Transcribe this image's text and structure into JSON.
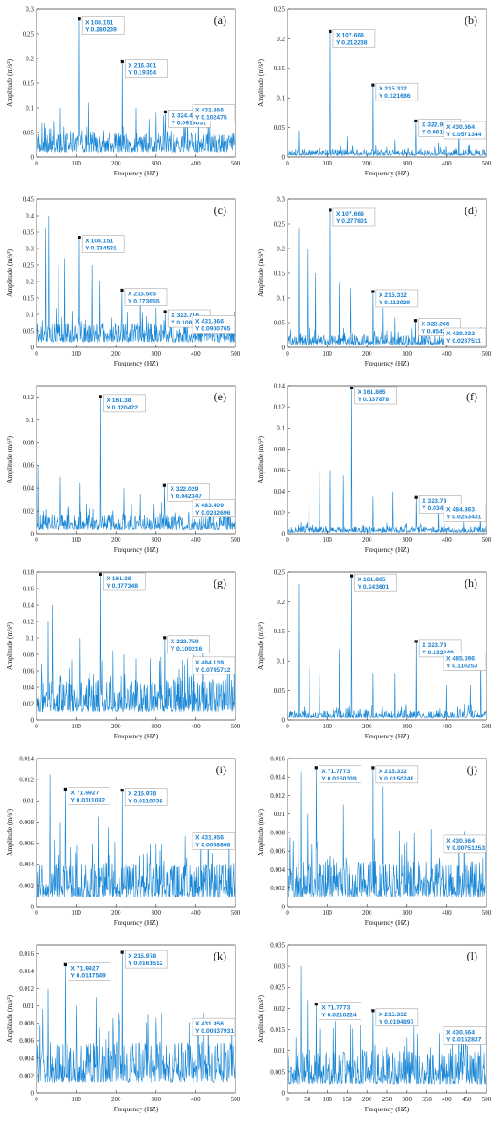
{
  "colors": {
    "line": "#1a87d6",
    "tip_text": "#1a7fd0",
    "tip_border": "#9a9a9a",
    "axis": "#333333"
  },
  "chart_data": [
    {
      "type": "line",
      "label": "(a)",
      "xlabel": "Frequency (HZ)",
      "ylabel": "Amplitude (m/s²)",
      "xlim": [
        0,
        500
      ],
      "ylim": [
        0,
        0.3
      ],
      "xticks": [
        "0",
        "100",
        "200",
        "300",
        "400",
        "500"
      ],
      "yticks": [
        "0",
        "0.05",
        "0.1",
        "0.15",
        "0.2",
        "0.25",
        "0.3"
      ],
      "noise_level": 0.03,
      "seed": 3,
      "peaks": [
        {
          "x": 108.151,
          "y": 0.280239,
          "tip_x": "X 108.151",
          "tip_y": "Y 0.280239"
        },
        {
          "x": 216.301,
          "y": 0.19354,
          "tip_x": "X 216.301",
          "tip_y": "Y 0.19354"
        },
        {
          "x": 324.452,
          "y": 0.0919031,
          "tip_x": "X 324.452",
          "tip_y": "Y 0.0919031"
        },
        {
          "x": 431.866,
          "y": 0.102475,
          "tip_x": "X 431.866",
          "tip_y": "Y 0.102475"
        }
      ],
      "extra_spikes": [
        [
          60,
          0.1
        ],
        [
          130,
          0.11
        ],
        [
          250,
          0.1
        ],
        [
          300,
          0.09
        ],
        [
          380,
          0.08
        ]
      ]
    },
    {
      "type": "line",
      "label": "(b)",
      "xlabel": "Frequency (HZ)",
      "ylabel": "Amplitude (m/s²)",
      "xlim": [
        0,
        500
      ],
      "ylim": [
        0,
        0.25
      ],
      "xticks": [
        "0",
        "100",
        "200",
        "300",
        "400",
        "500"
      ],
      "yticks": [
        "0",
        "0.05",
        "0.1",
        "0.15",
        "0.2",
        "0.25"
      ],
      "noise_level": 0.008,
      "seed": 7,
      "peaks": [
        {
          "x": 107.666,
          "y": 0.212238,
          "tip_x": "X 107.666",
          "tip_y": "Y 0.212238"
        },
        {
          "x": 215.332,
          "y": 0.121686,
          "tip_x": "X 215.332",
          "tip_y": "Y 0.121686"
        },
        {
          "x": 322.998,
          "y": 0.0610103,
          "tip_x": "X 322.998",
          "tip_y": "Y 0.0610103"
        },
        {
          "x": 430.664,
          "y": 0.0571344,
          "tip_x": "X 430.664",
          "tip_y": "Y 0.0571344"
        }
      ],
      "extra_spikes": [
        [
          30,
          0.045
        ],
        [
          150,
          0.035
        ],
        [
          270,
          0.03
        ],
        [
          380,
          0.025
        ]
      ]
    },
    {
      "type": "line",
      "label": "(c)",
      "xlabel": "Frequency (HZ)",
      "ylabel": "Amplitude (m/s²)",
      "xlim": [
        0,
        500
      ],
      "ylim": [
        0,
        0.45
      ],
      "xticks": [
        "0",
        "100",
        "200",
        "300",
        "400",
        "500"
      ],
      "yticks": [
        "0",
        "0.05",
        "0.1",
        "0.15",
        "0.2",
        "0.25",
        "0.3",
        "0.35",
        "0.4",
        "0.45"
      ],
      "noise_level": 0.045,
      "seed": 11,
      "peaks": [
        {
          "x": 108.151,
          "y": 0.334531,
          "tip_x": "X 108.151",
          "tip_y": "Y 0.334531"
        },
        {
          "x": 215.565,
          "y": 0.173655,
          "tip_x": "X 215.565",
          "tip_y": "Y 0.173655"
        },
        {
          "x": 323.716,
          "y": 0.108211,
          "tip_x": "X 323.716",
          "tip_y": "Y 0.108211"
        },
        {
          "x": 431.866,
          "y": 0.0900765,
          "tip_x": "X 431.866",
          "tip_y": "Y 0.0900765"
        }
      ],
      "extra_spikes": [
        [
          22,
          0.36
        ],
        [
          32,
          0.4
        ],
        [
          55,
          0.25
        ],
        [
          70,
          0.27
        ],
        [
          140,
          0.25
        ],
        [
          160,
          0.2
        ],
        [
          260,
          0.16
        ],
        [
          300,
          0.12
        ]
      ]
    },
    {
      "type": "line",
      "label": "(d)",
      "xlabel": "Frequency (HZ)",
      "ylabel": "Amplitude (m/s²)",
      "xlim": [
        0,
        500
      ],
      "ylim": [
        0,
        0.3
      ],
      "xticks": [
        "0",
        "100",
        "200",
        "300",
        "400",
        "500"
      ],
      "yticks": [
        "0",
        "0.05",
        "0.1",
        "0.15",
        "0.2",
        "0.25",
        "0.3"
      ],
      "noise_level": 0.015,
      "seed": 17,
      "peaks": [
        {
          "x": 107.666,
          "y": 0.277801,
          "tip_x": "X 107.666",
          "tip_y": "Y 0.277801"
        },
        {
          "x": 215.332,
          "y": 0.113029,
          "tip_x": "X 215.332",
          "tip_y": "Y 0.113029"
        },
        {
          "x": 322.266,
          "y": 0.054243,
          "tip_x": "X 322.266",
          "tip_y": "Y 0.054243"
        },
        {
          "x": 429.932,
          "y": 0.0237511,
          "tip_x": "X 429.932",
          "tip_y": "Y 0.0237511"
        }
      ],
      "extra_spikes": [
        [
          30,
          0.24
        ],
        [
          50,
          0.2
        ],
        [
          70,
          0.15
        ],
        [
          130,
          0.13
        ],
        [
          160,
          0.12
        ],
        [
          240,
          0.08
        ],
        [
          270,
          0.06
        ]
      ]
    },
    {
      "type": "line",
      "label": "(e)",
      "xlabel": "Frequency (HZ)",
      "ylabel": "Amplitude (m/s²)",
      "xlim": [
        0,
        500
      ],
      "ylim": [
        0,
        0.13
      ],
      "xticks": [
        "0",
        "100",
        "200",
        "300",
        "400",
        "500"
      ],
      "yticks": [
        "0",
        "0.02",
        "0.04",
        "0.06",
        "0.08",
        "0.1",
        "0.12"
      ],
      "noise_level": 0.01,
      "seed": 23,
      "peaks": [
        {
          "x": 161.38,
          "y": 0.120472,
          "tip_x": "X 161.38",
          "tip_y": "Y 0.120472"
        },
        {
          "x": 322.029,
          "y": 0.042347,
          "tip_x": "X 322.029",
          "tip_y": "Y 0.042347"
        },
        {
          "x": 483.409,
          "y": 0.0282696,
          "tip_x": "X 483.409",
          "tip_y": "Y 0.0282696"
        }
      ],
      "extra_spikes": [
        [
          5,
          0.06
        ],
        [
          60,
          0.05
        ],
        [
          110,
          0.045
        ],
        [
          220,
          0.04
        ],
        [
          260,
          0.035
        ]
      ]
    },
    {
      "type": "line",
      "label": "(f)",
      "xlabel": "Frequency (HZ)",
      "ylabel": "Amplitude (m/s²)",
      "xlim": [
        0,
        500
      ],
      "ylim": [
        0,
        0.14
      ],
      "xticks": [
        "0",
        "100",
        "200",
        "300",
        "400",
        "500"
      ],
      "yticks": [
        "0",
        "0.02",
        "0.04",
        "0.06",
        "0.08",
        "0.1",
        "0.12",
        "0.14"
      ],
      "noise_level": 0.004,
      "seed": 29,
      "peaks": [
        {
          "x": 161.865,
          "y": 0.137878,
          "tip_x": "X 161.865",
          "tip_y": "Y 0.137878"
        },
        {
          "x": 323.73,
          "y": 0.0343546,
          "tip_x": "X 323.73",
          "tip_y": "Y 0.0343546"
        },
        {
          "x": 484.863,
          "y": 0.0263431,
          "tip_x": "X 484.863",
          "tip_y": "Y 0.0263431"
        }
      ],
      "extra_spikes": [
        [
          54,
          0.058
        ],
        [
          80,
          0.06
        ],
        [
          108,
          0.06
        ],
        [
          140,
          0.055
        ],
        [
          215,
          0.035
        ],
        [
          265,
          0.04
        ],
        [
          380,
          0.025
        ]
      ]
    },
    {
      "type": "line",
      "label": "(g)",
      "xlabel": "Frequency (HZ)",
      "ylabel": "Amplitude (m/s²)",
      "xlim": [
        0,
        500
      ],
      "ylim": [
        0,
        0.18
      ],
      "xticks": [
        "0",
        "100",
        "200",
        "300",
        "400",
        "500"
      ],
      "yticks": [
        "0",
        "0.02",
        "0.04",
        "0.06",
        "0.08",
        "0.1",
        "0.12",
        "0.14",
        "0.16",
        "0.18"
      ],
      "noise_level": 0.03,
      "seed": 31,
      "peaks": [
        {
          "x": 161.38,
          "y": 0.177348,
          "tip_x": "X 161.38",
          "tip_y": "Y 0.177348"
        },
        {
          "x": 322.759,
          "y": 0.100216,
          "tip_x": "X 322.759",
          "tip_y": "Y 0.100216"
        },
        {
          "x": 484.139,
          "y": 0.0745712,
          "tip_x": "X 484.139",
          "tip_y": "Y 0.0745712"
        }
      ],
      "extra_spikes": [
        [
          30,
          0.12
        ],
        [
          40,
          0.14
        ],
        [
          110,
          0.1
        ],
        [
          220,
          0.08
        ],
        [
          380,
          0.075
        ]
      ]
    },
    {
      "type": "line",
      "label": "(h)",
      "xlabel": "Frequency (HZ)",
      "ylabel": "Amplitude (m/s²)",
      "xlim": [
        0,
        500
      ],
      "ylim": [
        0,
        0.25
      ],
      "xticks": [
        "0",
        "100",
        "200",
        "300",
        "400",
        "500"
      ],
      "yticks": [
        "0",
        "0.05",
        "0.1",
        "0.15",
        "0.2",
        "0.25"
      ],
      "noise_level": 0.01,
      "seed": 37,
      "peaks": [
        {
          "x": 161.865,
          "y": 0.243601,
          "tip_x": "X 161.865",
          "tip_y": "Y 0.243601"
        },
        {
          "x": 323.73,
          "y": 0.132849,
          "tip_x": "X 323.73",
          "tip_y": "Y 0.132849"
        },
        {
          "x": 485.596,
          "y": 0.110253,
          "tip_x": "X 485.596",
          "tip_y": "Y 0.110253"
        }
      ],
      "extra_spikes": [
        [
          30,
          0.23
        ],
        [
          55,
          0.09
        ],
        [
          80,
          0.08
        ],
        [
          130,
          0.12
        ],
        [
          215,
          0.08
        ],
        [
          270,
          0.08
        ],
        [
          400,
          0.06
        ],
        [
          460,
          0.06
        ]
      ]
    },
    {
      "type": "line",
      "label": "(i)",
      "xlabel": "Frequency (HZ)",
      "ylabel": "Amplitude (m/s²)",
      "xlim": [
        0,
        500
      ],
      "ylim": [
        0,
        0.014
      ],
      "xticks": [
        "0",
        "100",
        "200",
        "300",
        "400",
        "500"
      ],
      "yticks": [
        "0",
        "0.002",
        "0.004",
        "0.006",
        "0.008",
        "0.01",
        "0.012",
        "0.014"
      ],
      "noise_level": 0.0025,
      "seed": 41,
      "peaks": [
        {
          "x": 71.9927,
          "y": 0.0111092,
          "tip_x": "X 71.9927",
          "tip_y": "Y 0.0111092"
        },
        {
          "x": 215.978,
          "y": 0.0110038,
          "tip_x": "X 215.978",
          "tip_y": "Y 0.0110038"
        },
        {
          "x": 431.956,
          "y": 0.0068868,
          "tip_x": "X 431.956",
          "tip_y": "Y 0.0068868"
        }
      ],
      "extra_spikes": [
        [
          35,
          0.0125
        ],
        [
          60,
          0.008
        ],
        [
          155,
          0.0085
        ],
        [
          180,
          0.0075
        ],
        [
          300,
          0.006
        ]
      ]
    },
    {
      "type": "line",
      "label": "(j)",
      "xlabel": "Frequency (HZ)",
      "ylabel": "Amplitude (m/s²)",
      "xlim": [
        0,
        500
      ],
      "ylim": [
        0,
        0.016
      ],
      "xticks": [
        "0",
        "100",
        "200",
        "300",
        "400",
        "500"
      ],
      "yticks": [
        "0",
        "0.002",
        "0.004",
        "0.006",
        "0.008",
        "0.01",
        "0.012",
        "0.014",
        "0.016"
      ],
      "noise_level": 0.003,
      "seed": 43,
      "peaks": [
        {
          "x": 71.7773,
          "y": 0.0150339,
          "tip_x": "X 71.7773",
          "tip_y": "Y 0.0150339"
        },
        {
          "x": 215.332,
          "y": 0.0150248,
          "tip_x": "X 215.332",
          "tip_y": "Y 0.0150248"
        },
        {
          "x": 430.664,
          "y": 0.00751253,
          "tip_x": "X 430.664",
          "tip_y": "Y 0.00751253"
        }
      ],
      "extra_spikes": [
        [
          35,
          0.0145
        ],
        [
          50,
          0.01
        ],
        [
          140,
          0.011
        ],
        [
          240,
          0.013
        ],
        [
          300,
          0.007
        ]
      ]
    },
    {
      "type": "line",
      "label": "(k)",
      "xlabel": "Frequency (HZ)",
      "ylabel": "Amplitude (m/s²)",
      "xlim": [
        0,
        500
      ],
      "ylim": [
        0,
        0.017
      ],
      "xticks": [
        "0",
        "100",
        "200",
        "300",
        "400",
        "500"
      ],
      "yticks": [
        "0",
        "0.002",
        "0.004",
        "0.006",
        "0.008",
        "0.01",
        "0.012",
        "0.014",
        "0.016"
      ],
      "noise_level": 0.0035,
      "seed": 47,
      "peaks": [
        {
          "x": 71.9927,
          "y": 0.0147549,
          "tip_x": "X 71.9927",
          "tip_y": "Y 0.0147549"
        },
        {
          "x": 215.978,
          "y": 0.0161512,
          "tip_x": "X 215.978",
          "tip_y": "Y 0.0161512"
        },
        {
          "x": 431.956,
          "y": 0.00837931,
          "tip_x": "X 431.956",
          "tip_y": "Y 0.00837931"
        }
      ],
      "extra_spikes": [
        [
          30,
          0.012
        ],
        [
          100,
          0.01
        ],
        [
          150,
          0.011
        ],
        [
          280,
          0.009
        ]
      ]
    },
    {
      "type": "line",
      "label": "(l)",
      "xlabel": "Frequency (HZ)",
      "ylabel": "Amplitude (m/s²)",
      "xlim": [
        0,
        500
      ],
      "ylim": [
        0,
        0.035
      ],
      "xticks": [
        "0",
        "50",
        "100",
        "150",
        "200",
        "250",
        "300",
        "350",
        "400",
        "450",
        "500"
      ],
      "yticks": [
        "0",
        "0.005",
        "0.01",
        "0.015",
        "0.02",
        "0.025",
        "0.03",
        "0.035"
      ],
      "noise_level": 0.006,
      "seed": 53,
      "peaks": [
        {
          "x": 71.7773,
          "y": 0.0210224,
          "tip_x": "X 71.7773",
          "tip_y": "Y 0.0210224"
        },
        {
          "x": 215.332,
          "y": 0.0194897,
          "tip_x": "X 215.332",
          "tip_y": "Y 0.0194897"
        },
        {
          "x": 430.664,
          "y": 0.0152837,
          "tip_x": "X 430.664",
          "tip_y": "Y 0.0152837"
        }
      ],
      "extra_spikes": [
        [
          35,
          0.03
        ],
        [
          50,
          0.022
        ],
        [
          120,
          0.017
        ],
        [
          160,
          0.016
        ],
        [
          300,
          0.013
        ]
      ]
    }
  ]
}
